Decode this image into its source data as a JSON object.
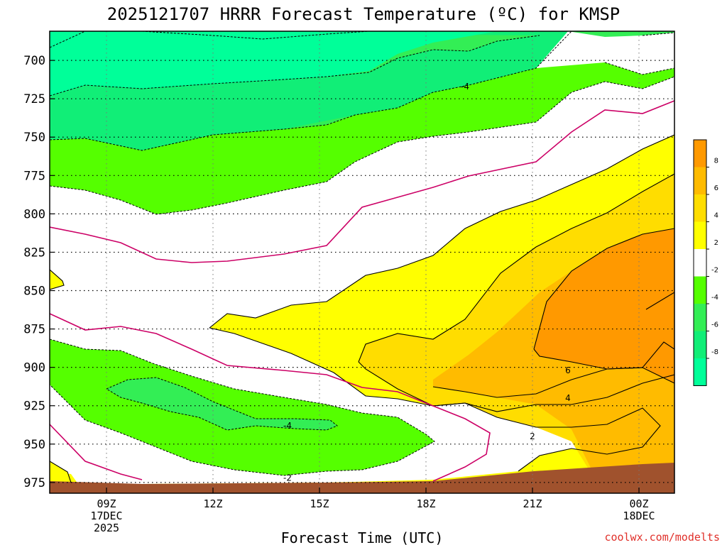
{
  "chart_data": {
    "type": "contour",
    "title": "2025121707 HRRR Forecast Temperature (ºC) for KMSP",
    "xlabel": "Forecast Time (UTC)",
    "ylabel": "",
    "credit": "coolwx.com/modelts",
    "x_range_hours": [
      7.4,
      25.0
    ],
    "y_range_hpa": [
      982,
      681
    ],
    "x_ticks": [
      {
        "hour": 9,
        "lines": [
          "09Z",
          "17DEC",
          "2025"
        ]
      },
      {
        "hour": 12,
        "lines": [
          "12Z"
        ]
      },
      {
        "hour": 15,
        "lines": [
          "15Z"
        ]
      },
      {
        "hour": 18,
        "lines": [
          "18Z"
        ]
      },
      {
        "hour": 21,
        "lines": [
          "21Z"
        ]
      },
      {
        "hour": 24,
        "lines": [
          "00Z",
          "18DEC"
        ]
      }
    ],
    "y_ticks": [
      "700",
      "725",
      "750",
      "775",
      "800",
      "825",
      "850",
      "875",
      "900",
      "925",
      "950",
      "975"
    ],
    "colorbar": {
      "ticks": [
        "8",
        "6",
        "4",
        "2",
        "-2",
        "-4",
        "-6",
        "-8"
      ],
      "bands": [
        {
          "range": "8 to 10",
          "color": "#ff9900"
        },
        {
          "range": "6 to 8",
          "color": "#ffbb00"
        },
        {
          "range": "4 to 6",
          "color": "#ffdd00"
        },
        {
          "range": "2 to 4",
          "color": "#ffff00"
        },
        {
          "range": "-2 to 2",
          "color": "#ffffff"
        },
        {
          "range": "-4 to -2",
          "color": "#55ff00"
        },
        {
          "range": "-6 to -4",
          "color": "#33ee55"
        },
        {
          "range": "-8 to -6",
          "color": "#11ee77"
        },
        {
          "range": "-10 to -8",
          "color": "#00ff99"
        }
      ]
    },
    "contour_labels": [
      {
        "text": "-4",
        "hour": 19.1,
        "hpa": 717
      },
      {
        "text": "-4",
        "hour": 14.1,
        "hpa": 938
      },
      {
        "text": "-2",
        "hour": 14.1,
        "hpa": 972
      },
      {
        "text": "6",
        "hour": 22.0,
        "hpa": 902
      },
      {
        "text": "4",
        "hour": 22.0,
        "hpa": 920
      },
      {
        "text": "2",
        "hour": 21.0,
        "hpa": 945
      }
    ],
    "regions": [
      {
        "name": "upper -10 band",
        "value_c": -9,
        "color": "#00ff99"
      },
      {
        "name": "upper -8 band",
        "value_c": -7,
        "color": "#11ee77"
      },
      {
        "name": "upper -6 band",
        "value_c": -5,
        "color": "#33ee55"
      },
      {
        "name": "upper -4 band",
        "value_c": -3,
        "color": "#55ff00"
      },
      {
        "name": "warm 2-4 band",
        "value_c": 3,
        "color": "#ffff00"
      },
      {
        "name": "warm 4-6 band",
        "value_c": 5,
        "color": "#ffdd00"
      },
      {
        "name": "warm 6-8 band",
        "value_c": 7,
        "color": "#ffbb00"
      },
      {
        "name": "warm 8+ band",
        "value_c": 9,
        "color": "#ff9900"
      },
      {
        "name": "lower -4 band",
        "value_c": -3,
        "color": "#55ff00"
      },
      {
        "name": "lower -6 band",
        "value_c": -5,
        "color": "#33ee55"
      },
      {
        "name": "terrain",
        "value_c": null,
        "color": "#a0522d"
      }
    ],
    "zero_isotherm_color": "#cc0066"
  }
}
